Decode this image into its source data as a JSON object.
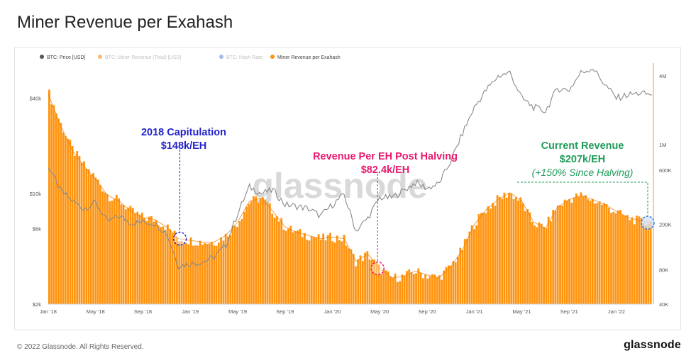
{
  "title": "Miner Revenue per Exahash",
  "footer": {
    "copyright": "© 2022 Glassnode. All Rights Reserved.",
    "logo": "glassnode"
  },
  "watermark": "glassnode",
  "colors": {
    "price": "#8a8a8a",
    "revenue_fill": "#ff9410",
    "revenue_line": "#f07a00",
    "hashrate": "#3d7bd6",
    "label_blue": "#2323c8",
    "label_pink": "#e8196e",
    "label_green": "#1f9c5a"
  },
  "legend": [
    {
      "label": "BTC: Price [USD]",
      "color": "#555555",
      "faded": false
    },
    {
      "label": "BTC: Miner Revenue (Total) [USD]",
      "color": "#ffb870",
      "faded": true
    },
    {
      "label": "BTC: Hash Rate",
      "color": "#9fbce6",
      "faded": true
    },
    {
      "label": "Miner Revenue per Exahash",
      "color": "#ff9410",
      "faded": false
    }
  ],
  "annotations": {
    "capitulation": {
      "title": "2018 Capitulation",
      "value": "$148k/EH"
    },
    "halving": {
      "title": "Revenue Per EH Post Halving",
      "value": "$82.4k/EH"
    },
    "current": {
      "title": "Current Revenue",
      "value": "$207k/EH",
      "note": "(+150% Since Halving)"
    }
  },
  "chart_data": {
    "type": "area",
    "x_ticks": [
      "Jan '18",
      "May '18",
      "Sep '18",
      "Jan '19",
      "May '19",
      "Sep '19",
      "Jan '20",
      "May '20",
      "Sep '20",
      "Jan '21",
      "May '21",
      "Sep '21",
      "Jan '22"
    ],
    "y_left": {
      "scale": "log",
      "ticks": [
        "$2k",
        "$6k",
        "$10k",
        "$40k"
      ]
    },
    "y_right": {
      "scale": "log",
      "ticks": [
        "40K",
        "80K",
        "200K",
        "600K",
        "1M",
        "4M"
      ]
    },
    "series": [
      {
        "name": "BTC: Price [USD]",
        "axis": "left",
        "x": [
          "Jan '18",
          "Feb '18",
          "Mar '18",
          "Apr '18",
          "May '18",
          "Jun '18",
          "Jul '18",
          "Aug '18",
          "Sep '18",
          "Oct '18",
          "Nov '18",
          "Dec '18",
          "Jan '19",
          "Feb '19",
          "Mar '19",
          "Apr '19",
          "May '19",
          "Jun '19",
          "Jul '19",
          "Aug '19",
          "Sep '19",
          "Oct '19",
          "Nov '19",
          "Dec '19",
          "Jan '20",
          "Feb '20",
          "Mar '20",
          "Apr '20",
          "May '20",
          "Jun '20",
          "Jul '20",
          "Aug '20",
          "Sep '20",
          "Oct '20",
          "Nov '20",
          "Dec '20",
          "Jan '21",
          "Feb '21",
          "Mar '21",
          "Apr '21",
          "May '21",
          "Jun '21",
          "Jul '21",
          "Aug '21",
          "Sep '21",
          "Oct '21",
          "Nov '21",
          "Dec '21",
          "Jan '22",
          "Feb '22",
          "Mar '22",
          "Apr '22"
        ],
        "values": [
          15000,
          10500,
          9000,
          8000,
          8800,
          6600,
          7200,
          6500,
          6600,
          6500,
          5600,
          3500,
          3600,
          3700,
          3950,
          4700,
          7500,
          11000,
          10000,
          10500,
          8500,
          8300,
          8000,
          7200,
          8500,
          9800,
          5800,
          7000,
          9400,
          9400,
          10400,
          11700,
          10800,
          11500,
          16000,
          24000,
          35000,
          45000,
          55000,
          58000,
          40000,
          35000,
          33000,
          46000,
          45000,
          58000,
          62000,
          49000,
          40000,
          42000,
          43000,
          42000
        ]
      },
      {
        "name": "Miner Revenue per Exahash",
        "axis": "right",
        "x": [
          "Jan '18",
          "Feb '18",
          "Mar '18",
          "Apr '18",
          "May '18",
          "Jun '18",
          "Jul '18",
          "Aug '18",
          "Sep '18",
          "Oct '18",
          "Nov '18",
          "Dec '18",
          "Jan '19",
          "Feb '19",
          "Mar '19",
          "Apr '19",
          "May '19",
          "Jun '19",
          "Jul '19",
          "Aug '19",
          "Sep '19",
          "Oct '19",
          "Nov '19",
          "Dec '19",
          "Jan '20",
          "Feb '20",
          "Mar '20",
          "Apr '20",
          "May '20",
          "Jun '20",
          "Jul '20",
          "Aug '20",
          "Sep '20",
          "Oct '20",
          "Nov '20",
          "Dec '20",
          "Jan '21",
          "Feb '21",
          "Mar '21",
          "Apr '21",
          "May '21",
          "Jun '21",
          "Jul '21",
          "Aug '21",
          "Sep '21",
          "Oct '21",
          "Nov '21",
          "Dec '21",
          "Jan '22",
          "Feb '22",
          "Mar '22",
          "Apr '22"
        ],
        "values": [
          2800000,
          1500000,
          900000,
          650000,
          500000,
          360000,
          320000,
          260000,
          230000,
          220000,
          190000,
          150000,
          145000,
          140000,
          140000,
          160000,
          210000,
          320000,
          340000,
          260000,
          190000,
          170000,
          160000,
          150000,
          155000,
          150000,
          95000,
          110000,
          82400,
          68000,
          70000,
          78000,
          72000,
          68000,
          85000,
          120000,
          200000,
          270000,
          330000,
          380000,
          320000,
          210000,
          185000,
          280000,
          330000,
          360000,
          330000,
          300000,
          260000,
          230000,
          215000,
          207000
        ]
      }
    ]
  }
}
